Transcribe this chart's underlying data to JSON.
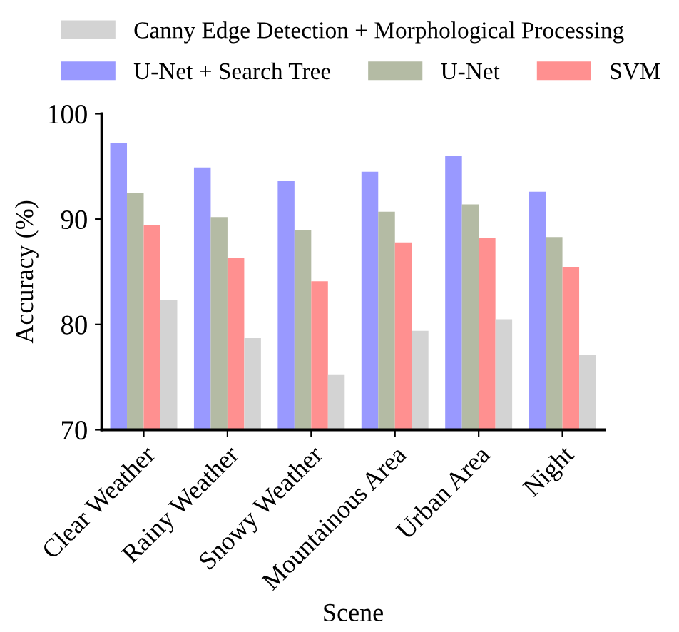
{
  "chart_data": {
    "type": "bar",
    "xlabel": "Scene",
    "ylabel": "Accuracy (%)",
    "categories": [
      "Clear Weather",
      "Rainy Weather",
      "Snowy Weather",
      "Mountainous Area",
      "Urban Area",
      "Night"
    ],
    "series": [
      {
        "name": "U-Net + Search Tree",
        "color": "#9999ff",
        "values": [
          97.2,
          94.9,
          93.6,
          94.5,
          96.0,
          92.6
        ]
      },
      {
        "name": "U-Net",
        "color": "#b4bba4",
        "values": [
          92.5,
          90.2,
          89.0,
          90.7,
          91.4,
          88.3
        ]
      },
      {
        "name": "SVM",
        "color": "#ff9090",
        "values": [
          89.4,
          86.3,
          84.1,
          87.8,
          88.2,
          85.4
        ]
      },
      {
        "name": "Canny Edge Detection + Morphological Processing",
        "color": "#d3d3d3",
        "values": [
          82.3,
          78.7,
          75.2,
          79.4,
          80.5,
          77.1
        ]
      }
    ],
    "ylim": [
      70,
      100
    ],
    "yticks": [
      70,
      80,
      90,
      100
    ],
    "grid": false,
    "legend": "top"
  }
}
